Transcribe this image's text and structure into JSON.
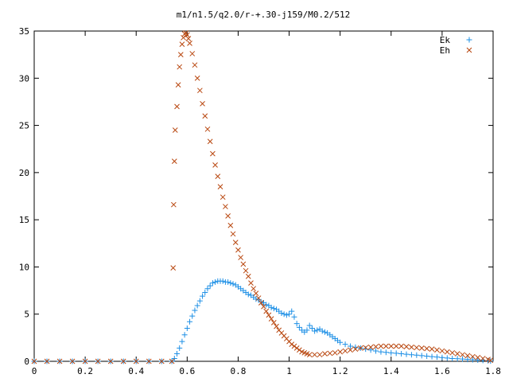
{
  "chart_data": {
    "type": "scatter",
    "title": "m1/n1.5/q2.0/r-+.30-j159/M0.2/512",
    "xlabel": "",
    "ylabel": "",
    "xlim": [
      0,
      1.8
    ],
    "ylim": [
      0,
      35
    ],
    "x_ticks": [
      0,
      0.2,
      0.4,
      0.6,
      0.8,
      1,
      1.2,
      1.4,
      1.6,
      1.8
    ],
    "x_tick_labels": [
      "0",
      "0.2",
      "0.4",
      "0.6",
      "0.8",
      "1",
      "1.2",
      "1.4",
      "1.6",
      "1.8"
    ],
    "y_ticks": [
      0,
      5,
      10,
      15,
      20,
      25,
      30,
      35
    ],
    "y_tick_labels": [
      "0",
      "5",
      "10",
      "15",
      "20",
      "25",
      "30",
      "35"
    ],
    "grid": false,
    "legend_position": "top-right",
    "series": [
      {
        "name": "Ek",
        "marker": "plus",
        "color": "#1e90e6",
        "points": [
          [
            0.0,
            0
          ],
          [
            0.05,
            0
          ],
          [
            0.1,
            0
          ],
          [
            0.15,
            0
          ],
          [
            0.2,
            0
          ],
          [
            0.25,
            0
          ],
          [
            0.3,
            0
          ],
          [
            0.35,
            0
          ],
          [
            0.4,
            0
          ],
          [
            0.45,
            0
          ],
          [
            0.5,
            0
          ],
          [
            0.54,
            0
          ],
          [
            0.55,
            0.3
          ],
          [
            0.56,
            0.8
          ],
          [
            0.57,
            1.4
          ],
          [
            0.58,
            2.1
          ],
          [
            0.59,
            2.8
          ],
          [
            0.6,
            3.5
          ],
          [
            0.61,
            4.2
          ],
          [
            0.62,
            4.8
          ],
          [
            0.63,
            5.4
          ],
          [
            0.64,
            5.9
          ],
          [
            0.65,
            6.4
          ],
          [
            0.66,
            6.9
          ],
          [
            0.67,
            7.3
          ],
          [
            0.68,
            7.7
          ],
          [
            0.69,
            8.0
          ],
          [
            0.7,
            8.3
          ],
          [
            0.71,
            8.4
          ],
          [
            0.72,
            8.5
          ],
          [
            0.73,
            8.5
          ],
          [
            0.74,
            8.5
          ],
          [
            0.75,
            8.4
          ],
          [
            0.76,
            8.4
          ],
          [
            0.77,
            8.3
          ],
          [
            0.78,
            8.2
          ],
          [
            0.79,
            8.1
          ],
          [
            0.8,
            7.9
          ],
          [
            0.81,
            7.7
          ],
          [
            0.82,
            7.5
          ],
          [
            0.83,
            7.3
          ],
          [
            0.84,
            7.1
          ],
          [
            0.85,
            7.0
          ],
          [
            0.86,
            6.8
          ],
          [
            0.87,
            6.6
          ],
          [
            0.88,
            6.5
          ],
          [
            0.89,
            6.3
          ],
          [
            0.9,
            6.2
          ],
          [
            0.91,
            6.0
          ],
          [
            0.92,
            5.9
          ],
          [
            0.93,
            5.7
          ],
          [
            0.94,
            5.6
          ],
          [
            0.95,
            5.5
          ],
          [
            0.96,
            5.3
          ],
          [
            0.97,
            5.1
          ],
          [
            0.98,
            5.0
          ],
          [
            0.99,
            4.9
          ],
          [
            1.0,
            5.0
          ],
          [
            1.01,
            5.3
          ],
          [
            1.02,
            4.7
          ],
          [
            1.03,
            4.0
          ],
          [
            1.04,
            3.6
          ],
          [
            1.05,
            3.3
          ],
          [
            1.06,
            3.1
          ],
          [
            1.07,
            3.3
          ],
          [
            1.08,
            3.8
          ],
          [
            1.09,
            3.5
          ],
          [
            1.1,
            3.2
          ],
          [
            1.11,
            3.3
          ],
          [
            1.12,
            3.4
          ],
          [
            1.13,
            3.2
          ],
          [
            1.14,
            3.1
          ],
          [
            1.15,
            3.0
          ],
          [
            1.16,
            2.8
          ],
          [
            1.17,
            2.6
          ],
          [
            1.18,
            2.4
          ],
          [
            1.19,
            2.2
          ],
          [
            1.2,
            2.0
          ],
          [
            1.22,
            1.8
          ],
          [
            1.24,
            1.6
          ],
          [
            1.26,
            1.5
          ],
          [
            1.28,
            1.4
          ],
          [
            1.3,
            1.3
          ],
          [
            1.32,
            1.2
          ],
          [
            1.34,
            1.1
          ],
          [
            1.36,
            1.0
          ],
          [
            1.38,
            0.95
          ],
          [
            1.4,
            0.9
          ],
          [
            1.42,
            0.85
          ],
          [
            1.44,
            0.8
          ],
          [
            1.46,
            0.75
          ],
          [
            1.48,
            0.7
          ],
          [
            1.5,
            0.65
          ],
          [
            1.52,
            0.6
          ],
          [
            1.54,
            0.55
          ],
          [
            1.56,
            0.5
          ],
          [
            1.58,
            0.45
          ],
          [
            1.6,
            0.4
          ],
          [
            1.62,
            0.35
          ],
          [
            1.64,
            0.3
          ],
          [
            1.66,
            0.27
          ],
          [
            1.68,
            0.24
          ],
          [
            1.7,
            0.2
          ],
          [
            1.72,
            0.17
          ],
          [
            1.74,
            0.14
          ],
          [
            1.76,
            0.1
          ],
          [
            1.78,
            0.06
          ],
          [
            1.79,
            0.03
          ]
        ]
      },
      {
        "name": "Eh",
        "marker": "cross",
        "color": "#b8460e",
        "points": [
          [
            0.0,
            0
          ],
          [
            0.05,
            0
          ],
          [
            0.1,
            0
          ],
          [
            0.15,
            0
          ],
          [
            0.2,
            0
          ],
          [
            0.25,
            0
          ],
          [
            0.3,
            0
          ],
          [
            0.35,
            0
          ],
          [
            0.4,
            0
          ],
          [
            0.45,
            0
          ],
          [
            0.5,
            0
          ],
          [
            0.54,
            0
          ],
          [
            0.545,
            9.9
          ],
          [
            0.547,
            16.6
          ],
          [
            0.55,
            21.2
          ],
          [
            0.553,
            24.5
          ],
          [
            0.56,
            27.0
          ],
          [
            0.565,
            29.3
          ],
          [
            0.57,
            31.2
          ],
          [
            0.575,
            32.5
          ],
          [
            0.58,
            33.6
          ],
          [
            0.585,
            34.3
          ],
          [
            0.59,
            34.7
          ],
          [
            0.595,
            34.8
          ],
          [
            0.6,
            34.6
          ],
          [
            0.605,
            34.2
          ],
          [
            0.61,
            33.7
          ],
          [
            0.62,
            32.6
          ],
          [
            0.63,
            31.4
          ],
          [
            0.64,
            30.0
          ],
          [
            0.65,
            28.7
          ],
          [
            0.66,
            27.3
          ],
          [
            0.67,
            26.0
          ],
          [
            0.68,
            24.6
          ],
          [
            0.69,
            23.3
          ],
          [
            0.7,
            22.0
          ],
          [
            0.71,
            20.8
          ],
          [
            0.72,
            19.6
          ],
          [
            0.73,
            18.5
          ],
          [
            0.74,
            17.4
          ],
          [
            0.75,
            16.4
          ],
          [
            0.76,
            15.4
          ],
          [
            0.77,
            14.4
          ],
          [
            0.78,
            13.5
          ],
          [
            0.79,
            12.6
          ],
          [
            0.8,
            11.8
          ],
          [
            0.81,
            11.0
          ],
          [
            0.82,
            10.3
          ],
          [
            0.83,
            9.6
          ],
          [
            0.84,
            9.0
          ],
          [
            0.85,
            8.3
          ],
          [
            0.86,
            7.7
          ],
          [
            0.87,
            7.2
          ],
          [
            0.88,
            6.7
          ],
          [
            0.89,
            6.2
          ],
          [
            0.9,
            5.8
          ],
          [
            0.91,
            5.3
          ],
          [
            0.92,
            4.9
          ],
          [
            0.93,
            4.5
          ],
          [
            0.94,
            4.1
          ],
          [
            0.95,
            3.7
          ],
          [
            0.96,
            3.3
          ],
          [
            0.97,
            3.0
          ],
          [
            0.98,
            2.7
          ],
          [
            0.99,
            2.4
          ],
          [
            1.0,
            2.1
          ],
          [
            1.01,
            1.8
          ],
          [
            1.02,
            1.6
          ],
          [
            1.03,
            1.4
          ],
          [
            1.04,
            1.2
          ],
          [
            1.05,
            1.0
          ],
          [
            1.06,
            0.9
          ],
          [
            1.07,
            0.8
          ],
          [
            1.08,
            0.7
          ],
          [
            1.1,
            0.7
          ],
          [
            1.12,
            0.7
          ],
          [
            1.14,
            0.8
          ],
          [
            1.16,
            0.85
          ],
          [
            1.18,
            0.9
          ],
          [
            1.2,
            1.0
          ],
          [
            1.22,
            1.1
          ],
          [
            1.24,
            1.2
          ],
          [
            1.26,
            1.3
          ],
          [
            1.28,
            1.4
          ],
          [
            1.3,
            1.45
          ],
          [
            1.32,
            1.5
          ],
          [
            1.34,
            1.55
          ],
          [
            1.36,
            1.6
          ],
          [
            1.38,
            1.6
          ],
          [
            1.4,
            1.6
          ],
          [
            1.42,
            1.6
          ],
          [
            1.44,
            1.6
          ],
          [
            1.46,
            1.55
          ],
          [
            1.48,
            1.5
          ],
          [
            1.5,
            1.45
          ],
          [
            1.52,
            1.4
          ],
          [
            1.54,
            1.35
          ],
          [
            1.56,
            1.3
          ],
          [
            1.58,
            1.2
          ],
          [
            1.6,
            1.1
          ],
          [
            1.62,
            1.0
          ],
          [
            1.64,
            0.9
          ],
          [
            1.66,
            0.8
          ],
          [
            1.68,
            0.7
          ],
          [
            1.7,
            0.6
          ],
          [
            1.72,
            0.5
          ],
          [
            1.74,
            0.4
          ],
          [
            1.76,
            0.3
          ],
          [
            1.78,
            0.2
          ],
          [
            1.79,
            0.1
          ]
        ]
      }
    ]
  }
}
